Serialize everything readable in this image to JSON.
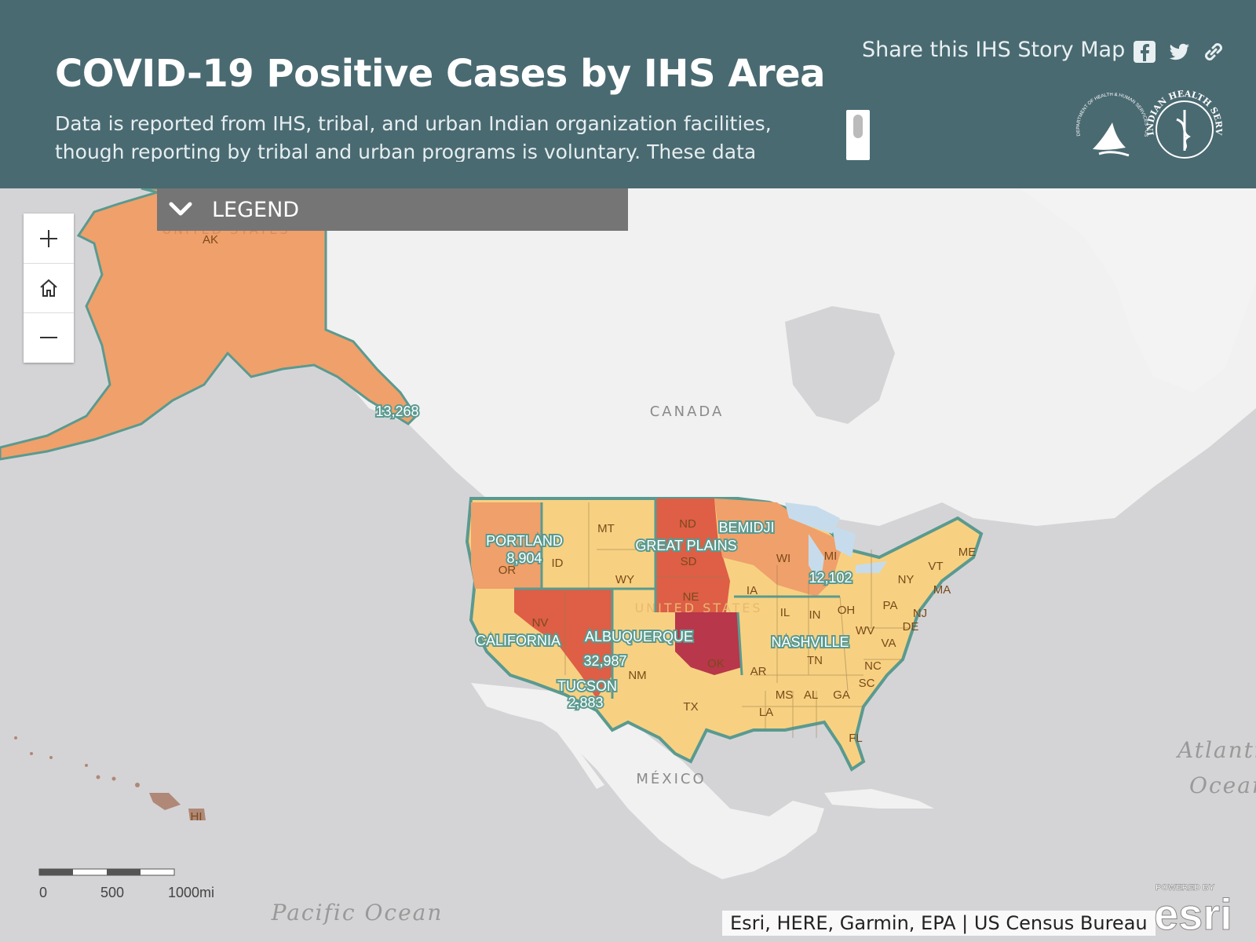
{
  "header": {
    "title": "COVID-19 Positive Cases by IHS Area",
    "description": "Data is reported from IHS, tribal, and urban Indian organization facilities, though reporting by tribal and urban programs is voluntary. These data reflect cases",
    "share_label": "Share this IHS Story Map",
    "social_icons": [
      "facebook-icon",
      "twitter-icon",
      "link-icon"
    ],
    "logos": [
      "hhs-logo",
      "indian-health-service-logo"
    ],
    "ihs_logo_text": "INDIAN HEALTH SERVICE · PHS · 1955",
    "hhs_logo_text": "DEPARTMENT OF HEALTH & HUMAN SERVICES · USA"
  },
  "legend": {
    "label": "LEGEND",
    "icon": "chevron-down-icon"
  },
  "zoom_controls": {
    "zoom_in": "plus-icon",
    "home": "home-icon",
    "zoom_out": "minus-icon"
  },
  "map": {
    "colors": {
      "ocean": "#d4d4d6",
      "land": "#f1f1f1",
      "low": "#f7d181",
      "mid": "#f0a06a",
      "high": "#de5e46",
      "highest": "#b8374a",
      "outline": "#5a9a90"
    },
    "country_labels": [
      "CANADA",
      "MÉXICO",
      "UNITED STATES"
    ],
    "ocean_labels": [
      "Pacific Ocean",
      "Atlantic",
      "Ocean"
    ],
    "areas": [
      {
        "name": "",
        "cases": "13,268"
      },
      {
        "name": "PORTLAND",
        "cases": "8,904"
      },
      {
        "name": "CALIFORNIA",
        "cases": ""
      },
      {
        "name": "ALBUQUERQUE",
        "cases": "32,987"
      },
      {
        "name": "TUCSON",
        "cases": "2,883"
      },
      {
        "name": "GREAT PLAINS",
        "cases": ""
      },
      {
        "name": "BEMIDJI",
        "cases": "12,102"
      },
      {
        "name": "NASHVILLE",
        "cases": ""
      }
    ],
    "states": [
      "AK",
      "HI",
      "OR",
      "ID",
      "MT",
      "WY",
      "ND",
      "SD",
      "NE",
      "NV",
      "NM",
      "TX",
      "OK",
      "IA",
      "WI",
      "MI",
      "IL",
      "IN",
      "OH",
      "PA",
      "NY",
      "VT",
      "ME",
      "MA",
      "NJ",
      "DE",
      "WV",
      "VA",
      "NC",
      "SC",
      "TN",
      "AR",
      "MS",
      "AL",
      "GA",
      "LA",
      "FL"
    ]
  },
  "scale": {
    "labels": [
      "0",
      "500",
      "1000mi"
    ]
  },
  "attribution": "Esri, HERE, Garmin, EPA | US Census Bureau",
  "esri_logo": {
    "powered_by": "POWERED BY",
    "brand": "esri"
  }
}
